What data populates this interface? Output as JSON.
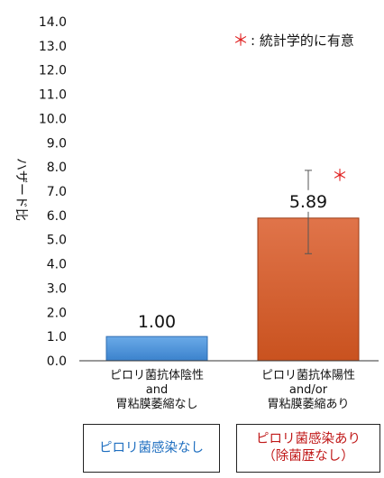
{
  "chart_data": {
    "type": "bar",
    "ylabel": "ハザード比",
    "ylim": [
      0,
      14
    ],
    "ytick_step": 1,
    "categories": [
      "ピロリ菌抗体陰性\nand\n胃粘膜萎縮なし",
      "ピロリ菌抗体陽性\nand/or\n胃粘膜萎縮あり"
    ],
    "values": [
      1.0,
      5.89
    ],
    "value_labels": [
      "1.00",
      "5.89"
    ],
    "error_bars": [
      null,
      {
        "low": 4.42,
        "high": 7.86
      }
    ],
    "significance_markers": [
      "",
      "＊"
    ],
    "bar_colors": [
      "#4a90d9",
      "#d65f2e"
    ],
    "legend_note": {
      "symbol": "＊",
      "text": ": 統計学的に有意"
    },
    "grid": false
  },
  "group_boxes": [
    {
      "label": "ピロリ菌感染なし",
      "color": "#1f6fc0"
    },
    {
      "label": "ピロリ菌感染あり\n（除菌歴なし）",
      "color": "#c01818"
    }
  ]
}
